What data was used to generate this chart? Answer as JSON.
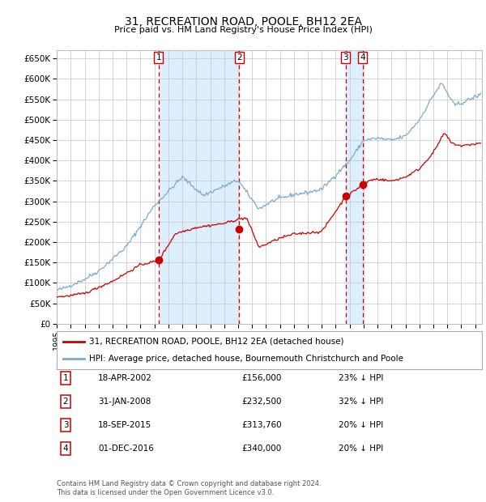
{
  "title": "31, RECREATION ROAD, POOLE, BH12 2EA",
  "subtitle": "Price paid vs. HM Land Registry's House Price Index (HPI)",
  "ylim": [
    0,
    670000
  ],
  "xlim_start": 1995.0,
  "xlim_end": 2025.5,
  "yticks": [
    0,
    50000,
    100000,
    150000,
    200000,
    250000,
    300000,
    350000,
    400000,
    450000,
    500000,
    550000,
    600000,
    650000
  ],
  "ytick_labels": [
    "£0",
    "£50K",
    "£100K",
    "£150K",
    "£200K",
    "£250K",
    "£300K",
    "£350K",
    "£400K",
    "£450K",
    "£500K",
    "£550K",
    "£600K",
    "£650K"
  ],
  "hpi_color": "#7aabcf",
  "price_color": "#cc0000",
  "grid_color": "#cccccc",
  "background_color": "#ffffff",
  "plot_bg_color": "#ffffff",
  "sale_dates": [
    2002.3,
    2008.08,
    2015.72,
    2016.92
  ],
  "sale_prices": [
    156000,
    232500,
    313760,
    340000
  ],
  "sale_labels": [
    "1",
    "2",
    "3",
    "4"
  ],
  "dashed_line_color": "#dd0000",
  "shade_color": "#ddeeff",
  "legend_items": [
    {
      "label": "31, RECREATION ROAD, POOLE, BH12 2EA (detached house)",
      "color": "#cc0000"
    },
    {
      "label": "HPI: Average price, detached house, Bournemouth Christchurch and Poole",
      "color": "#7aabcf"
    }
  ],
  "table_rows": [
    {
      "num": "1",
      "date": "18-APR-2002",
      "price": "£156,000",
      "pct": "23% ↓ HPI"
    },
    {
      "num": "2",
      "date": "31-JAN-2008",
      "price": "£232,500",
      "pct": "32% ↓ HPI"
    },
    {
      "num": "3",
      "date": "18-SEP-2015",
      "price": "£313,760",
      "pct": "20% ↓ HPI"
    },
    {
      "num": "4",
      "date": "01-DEC-2016",
      "price": "£340,000",
      "pct": "20% ↓ HPI"
    }
  ],
  "footnote": "Contains HM Land Registry data © Crown copyright and database right 2024.\nThis data is licensed under the Open Government Licence v3.0."
}
